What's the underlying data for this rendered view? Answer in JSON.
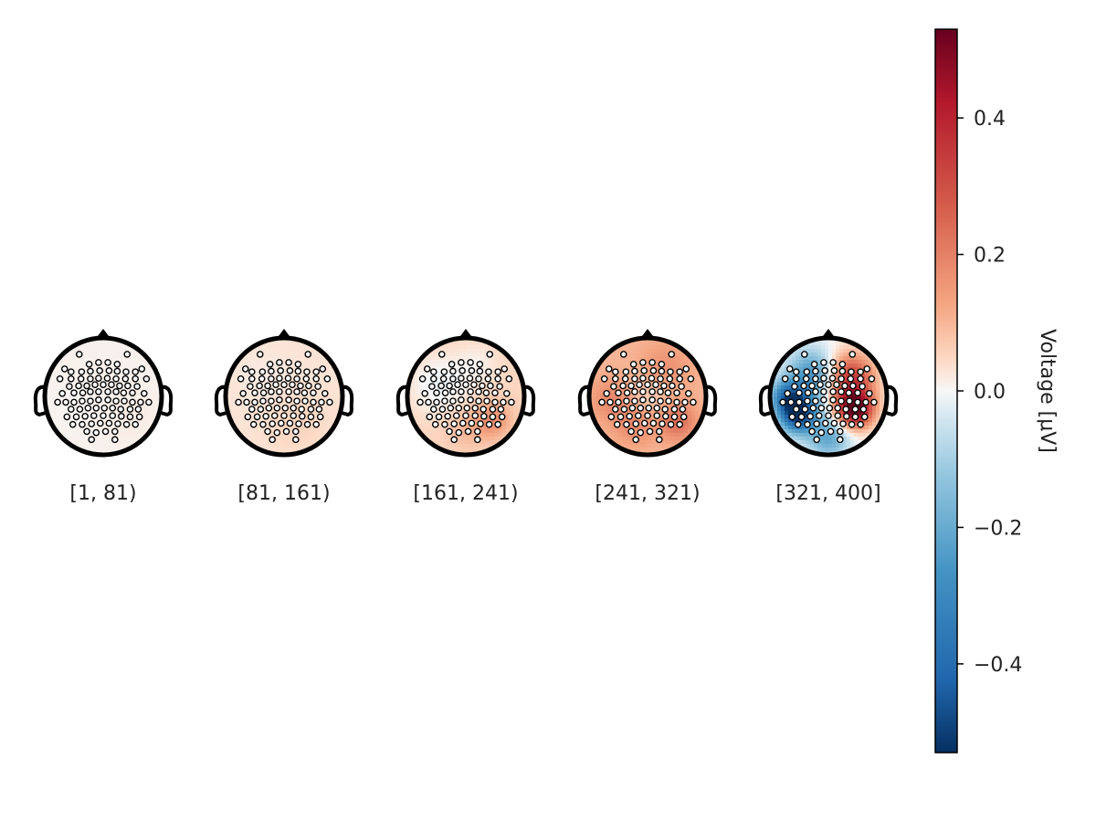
{
  "chart_data": {
    "type": "heatmap",
    "title": "",
    "panels": [
      {
        "label": "[1, 81)",
        "intensity": 0.02,
        "red_bias": 0.01
      },
      {
        "label": "[81, 161)",
        "intensity": 0.04,
        "red_bias": 0.03
      },
      {
        "label": "[161, 241)",
        "intensity": 0.12,
        "red_bias": 0.05
      },
      {
        "label": "[241, 321)",
        "intensity": 0.18,
        "red_bias": 0.1
      },
      {
        "label": "[321, 400]",
        "intensity": 0.53,
        "red_bias": 0.0
      }
    ],
    "colorbar": {
      "label": "Voltage [μV]",
      "range": [
        -0.53,
        0.53
      ],
      "ticks": [
        {
          "value": 0.4,
          "label": "0.4"
        },
        {
          "value": 0.2,
          "label": "0.2"
        },
        {
          "value": 0.0,
          "label": "0.0"
        },
        {
          "value": -0.2,
          "label": "−0.2"
        },
        {
          "value": -0.4,
          "label": "−0.4"
        }
      ],
      "colormap": "RdBu_r"
    },
    "colors": {
      "negative_max": "#053061",
      "neutral": "#f7f7f7",
      "positive_max": "#67001f"
    }
  }
}
